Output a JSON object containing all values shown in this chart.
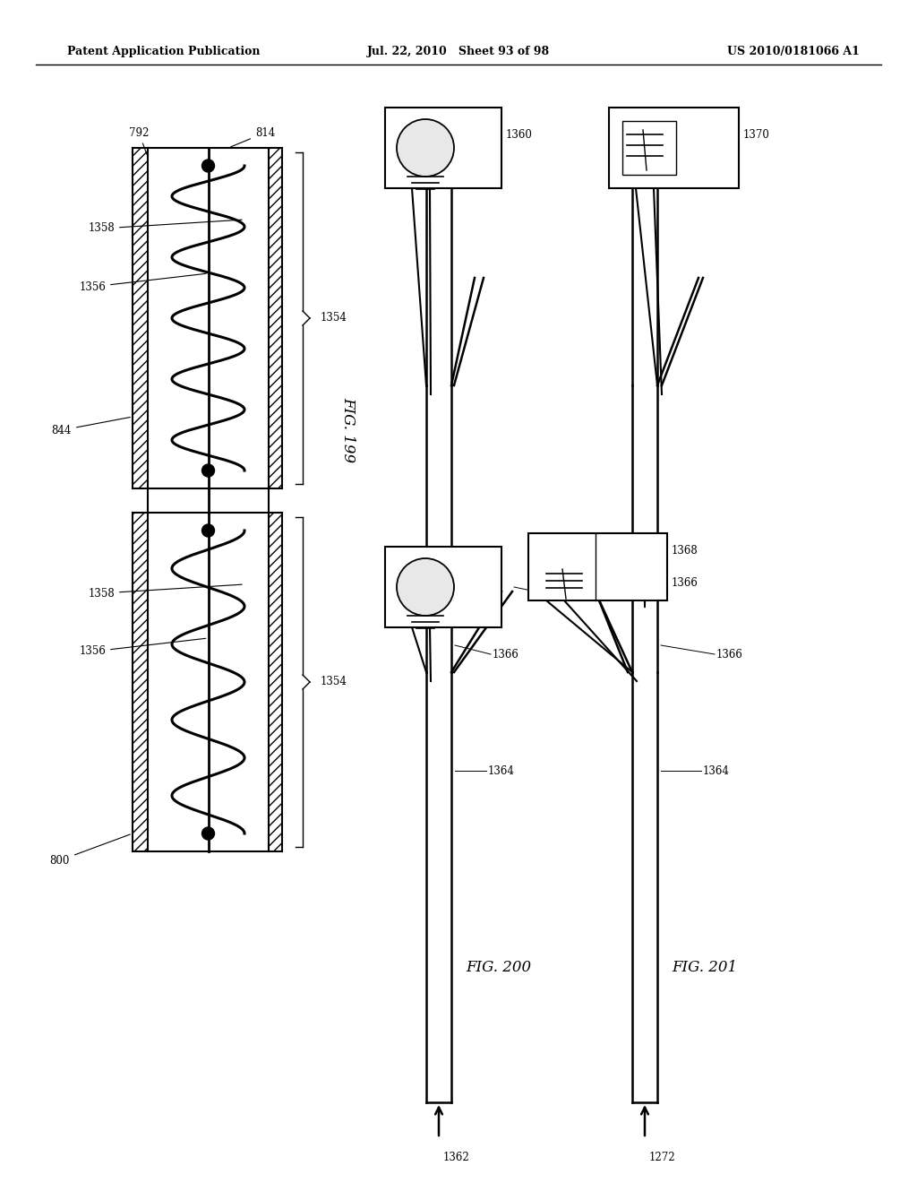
{
  "header_left": "Patent Application Publication",
  "header_mid": "Jul. 22, 2010   Sheet 93 of 98",
  "header_right": "US 2010/0181066 A1",
  "fig199_label": "FIG. 199",
  "fig200_label": "FIG. 200",
  "fig201_label": "FIG. 201",
  "background_color": "#ffffff",
  "line_color": "#000000"
}
